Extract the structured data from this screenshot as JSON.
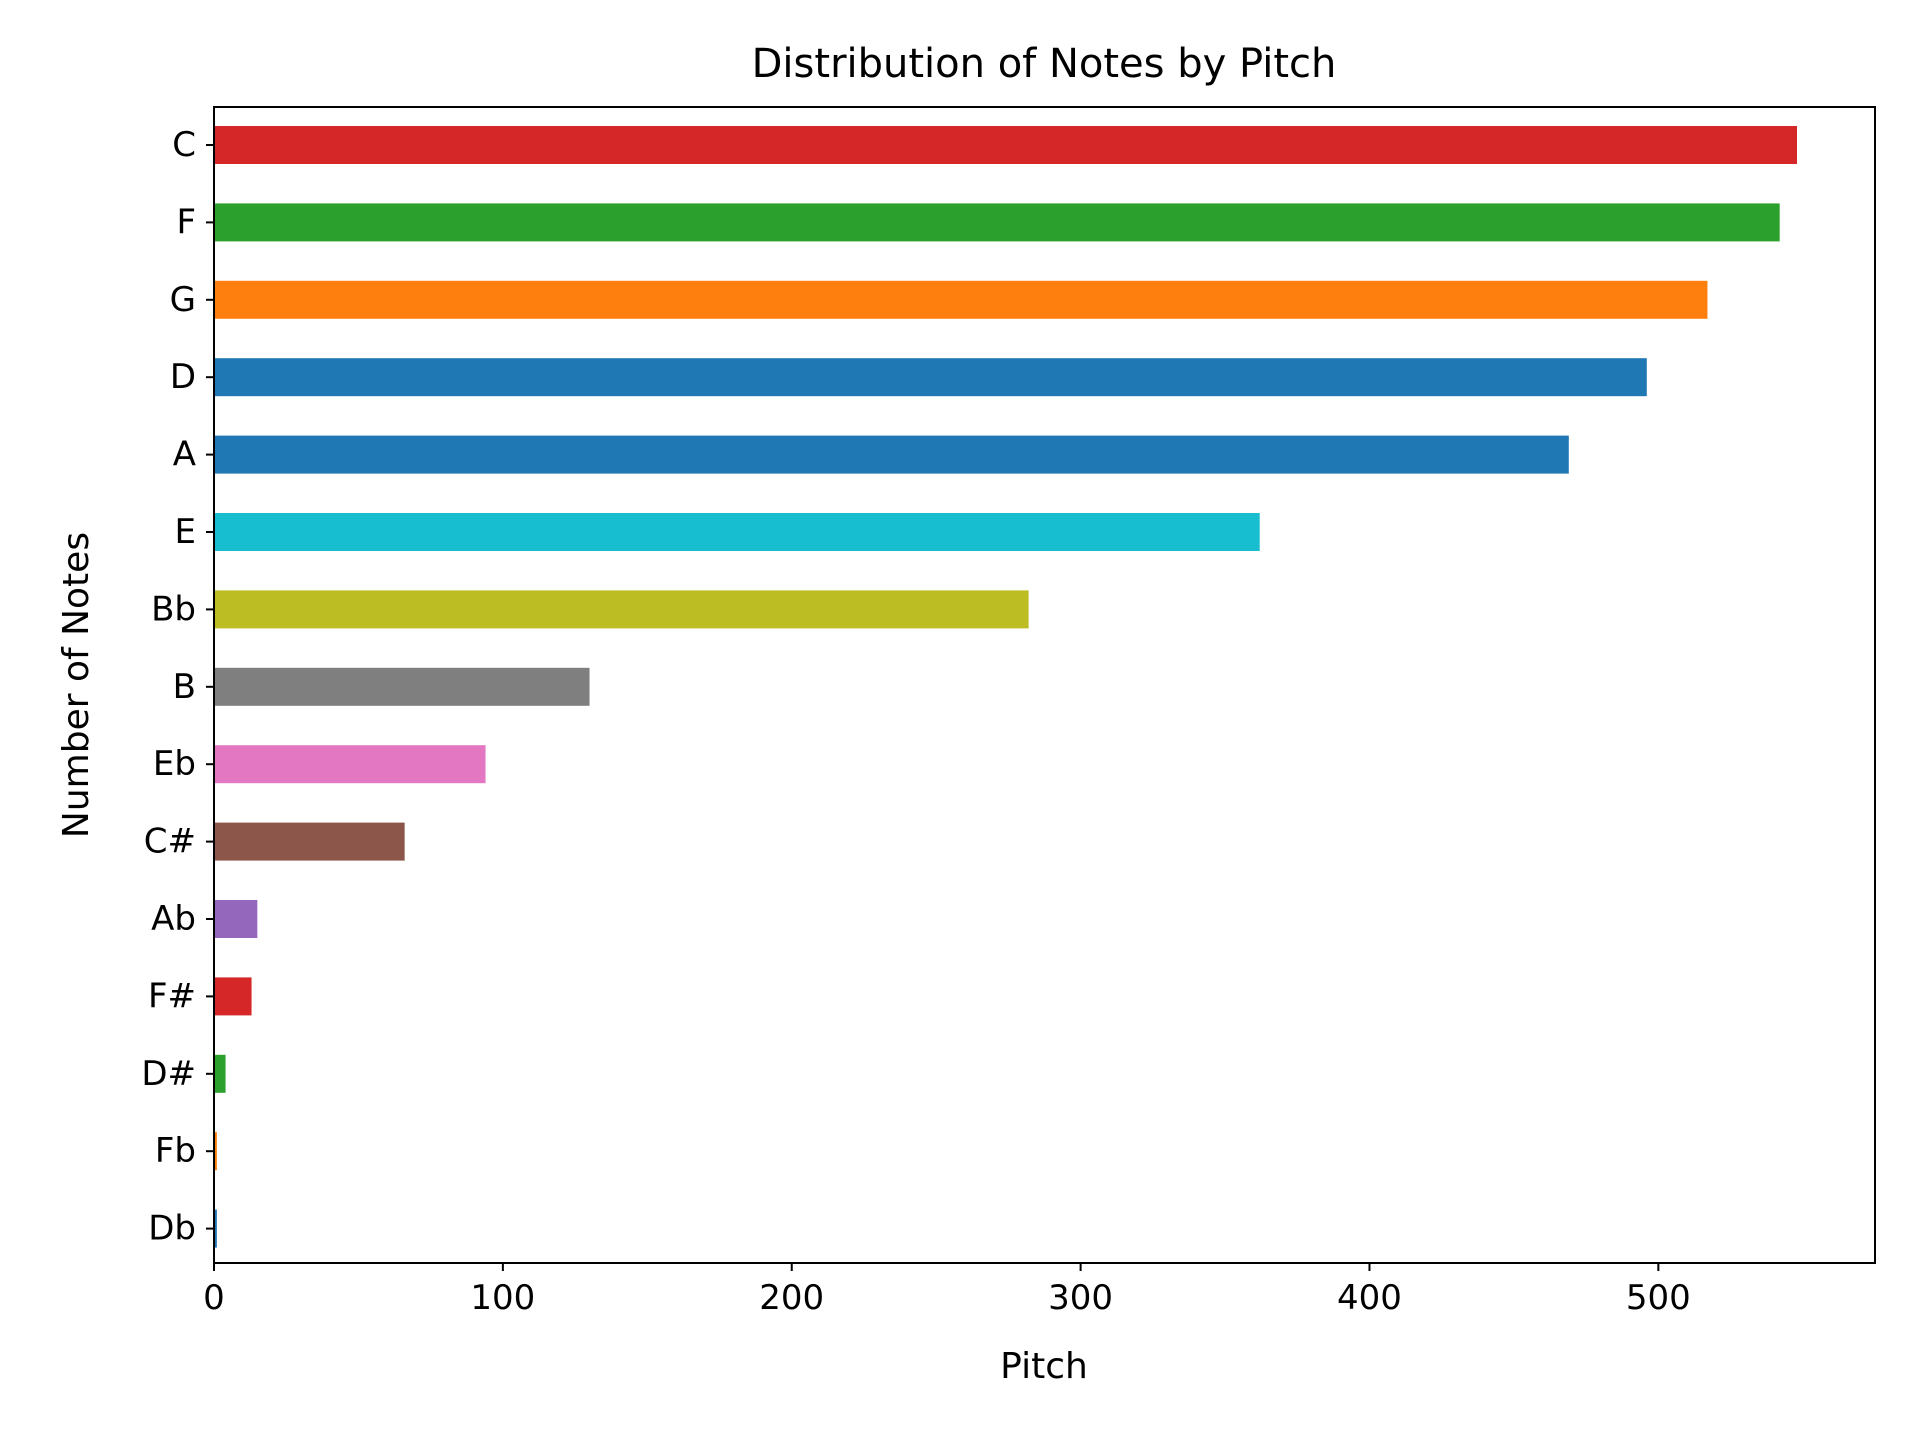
{
  "chart_data": {
    "type": "bar",
    "orientation": "horizontal",
    "title": "Distribution of Notes by Pitch",
    "xlabel": "Pitch",
    "ylabel": "Number of Notes",
    "xlim": [
      0,
      575
    ],
    "xticks": [
      0,
      100,
      200,
      300,
      400,
      500
    ],
    "grid": false,
    "legend": "none",
    "categories": [
      "C",
      "F",
      "G",
      "D",
      "A",
      "E",
      "Bb",
      "B",
      "Eb",
      "C#",
      "Ab",
      "F#",
      "D#",
      "Fb",
      "Db"
    ],
    "values": [
      548,
      542,
      517,
      496,
      469,
      362,
      282,
      130,
      94,
      66,
      15,
      13,
      4,
      1,
      1
    ],
    "colors": [
      "#d62728",
      "#2ca02c",
      "#ff7f0e",
      "#1f77b4",
      "#1f77b4",
      "#17becf",
      "#bcbd22",
      "#7f7f7f",
      "#e377c2",
      "#8c564b",
      "#9467bd",
      "#d62728",
      "#2ca02c",
      "#ff7f0e",
      "#1f77b4"
    ]
  }
}
